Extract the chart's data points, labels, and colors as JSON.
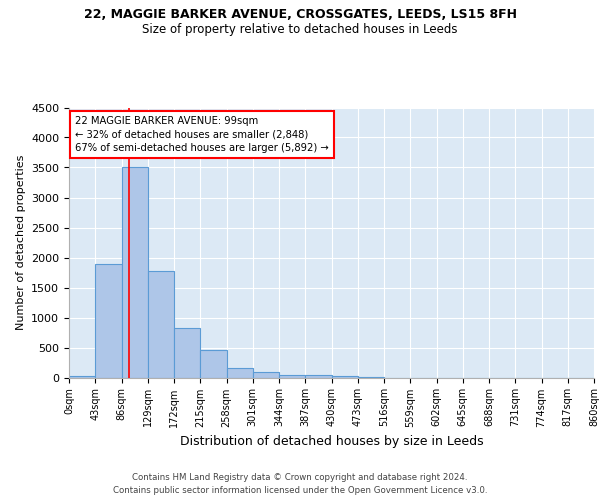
{
  "title": "22, MAGGIE BARKER AVENUE, CROSSGATES, LEEDS, LS15 8FH",
  "subtitle": "Size of property relative to detached houses in Leeds",
  "xlabel": "Distribution of detached houses by size in Leeds",
  "ylabel": "Number of detached properties",
  "bar_left_edges": [
    0,
    43,
    86,
    129,
    172,
    215,
    258,
    301,
    344,
    387,
    430,
    473,
    516,
    559,
    602,
    645,
    688,
    731,
    774,
    817
  ],
  "bar_heights": [
    30,
    1900,
    3500,
    1780,
    830,
    460,
    155,
    90,
    50,
    35,
    25,
    10,
    0,
    0,
    0,
    0,
    0,
    0,
    0,
    0
  ],
  "bin_width": 43,
  "bar_facecolor": "#aec6e8",
  "bar_edgecolor": "#5b9bd5",
  "bg_color": "#dce9f5",
  "grid_color": "#ffffff",
  "red_line_x": 99,
  "annotation_text": "22 MAGGIE BARKER AVENUE: 99sqm\n← 32% of detached houses are smaller (2,848)\n67% of semi-detached houses are larger (5,892) →",
  "annotation_box_edgecolor": "red",
  "ylim": [
    0,
    4500
  ],
  "tick_labels": [
    "0sqm",
    "43sqm",
    "86sqm",
    "129sqm",
    "172sqm",
    "215sqm",
    "258sqm",
    "301sqm",
    "344sqm",
    "387sqm",
    "430sqm",
    "473sqm",
    "516sqm",
    "559sqm",
    "602sqm",
    "645sqm",
    "688sqm",
    "731sqm",
    "774sqm",
    "817sqm",
    "860sqm"
  ],
  "tick_positions": [
    0,
    43,
    86,
    129,
    172,
    215,
    258,
    301,
    344,
    387,
    430,
    473,
    516,
    559,
    602,
    645,
    688,
    731,
    774,
    817,
    860
  ],
  "footer_line1": "Contains HM Land Registry data © Crown copyright and database right 2024.",
  "footer_line2": "Contains public sector information licensed under the Open Government Licence v3.0.",
  "title_fontsize": 9,
  "subtitle_fontsize": 8.5,
  "ylabel_fontsize": 8,
  "xlabel_fontsize": 9,
  "tick_fontsize": 7,
  "ytick_fontsize": 8,
  "footer_fontsize": 6.2
}
